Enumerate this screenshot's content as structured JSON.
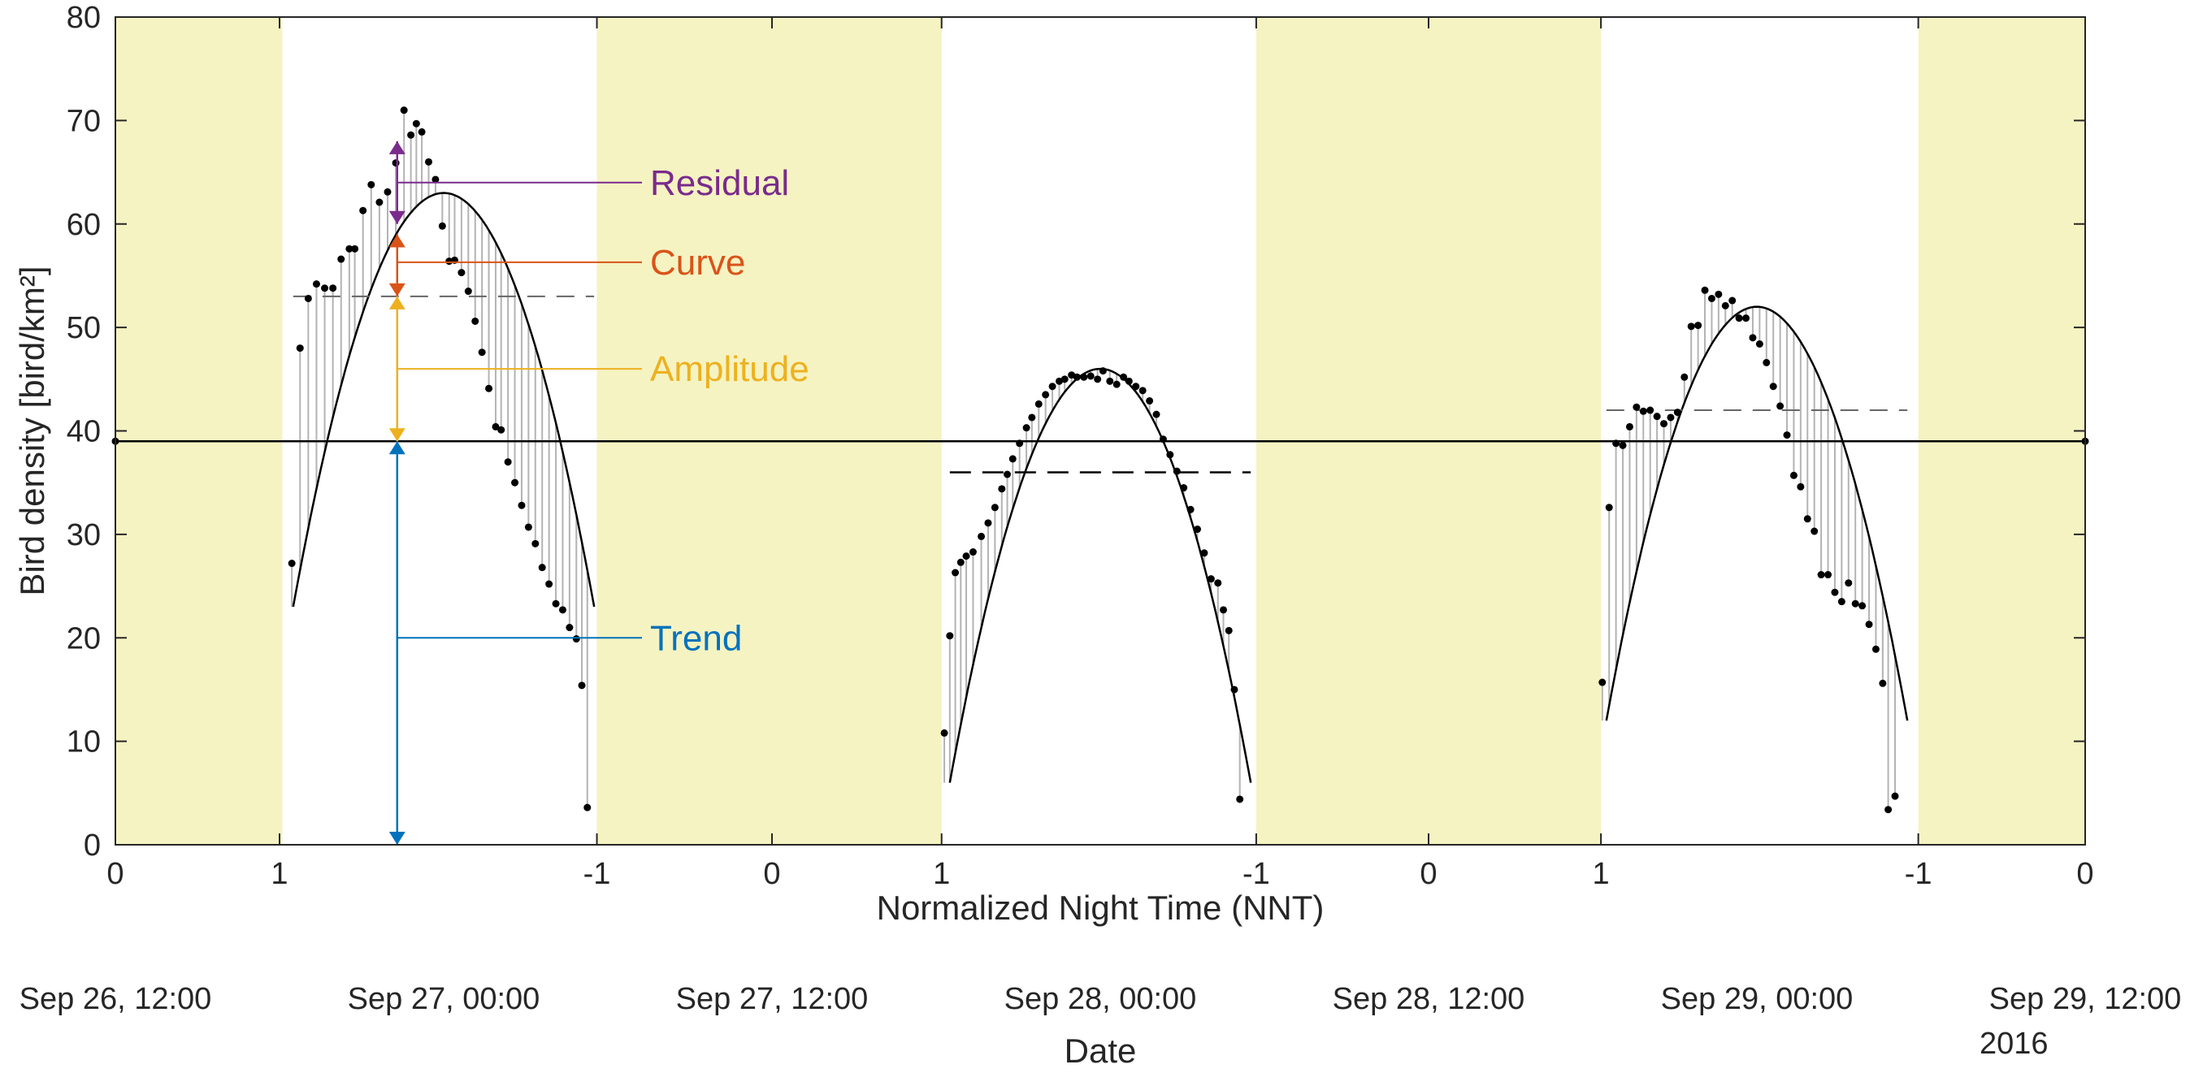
{
  "chart_data": {
    "type": "scatter",
    "xlabel": "Normalized Night Time (NNT)",
    "ylabel": "Bird density [bird/km²]",
    "ylim": [
      0,
      80
    ],
    "yticks": [
      0,
      10,
      20,
      30,
      40,
      50,
      60,
      70,
      80
    ],
    "xlim_hours": [
      0,
      72
    ],
    "date_axis": {
      "title": "Date",
      "ticks": [
        "Sep 26, 12:00",
        "Sep 27, 00:00",
        "Sep 27, 12:00",
        "Sep 28, 00:00",
        "Sep 28, 12:00",
        "Sep 29, 00:00",
        "Sep 29, 12:00"
      ],
      "year": "2016"
    },
    "nnt_ticks": [
      {
        "h": 0,
        "label": "0"
      },
      {
        "h": 6,
        "label": "1"
      },
      {
        "h": 17.6,
        "label": "-1"
      },
      {
        "h": 24,
        "label": "0"
      },
      {
        "h": 30.2,
        "label": "1"
      },
      {
        "h": 41.7,
        "label": "-1"
      },
      {
        "h": 48,
        "label": "0"
      },
      {
        "h": 54.3,
        "label": "1"
      },
      {
        "h": 65.9,
        "label": "-1"
      },
      {
        "h": 72,
        "label": "0"
      }
    ],
    "day_periods": [
      [
        0,
        6.1
      ],
      [
        17.6,
        30.2
      ],
      [
        41.7,
        54.3
      ],
      [
        65.9,
        72
      ]
    ],
    "trend": 39,
    "nights": [
      {
        "start": 6.5,
        "end": 17.5,
        "peak_x": 12.0,
        "peak_y": 63,
        "amplitude_level": 53,
        "fit_ends": [
          23,
          23
        ],
        "points": [
          [
            6.45,
            27.2
          ],
          [
            6.75,
            48
          ],
          [
            7.05,
            52.8
          ],
          [
            7.35,
            54.2
          ],
          [
            7.65,
            53.8
          ],
          [
            7.95,
            53.8
          ],
          [
            8.25,
            56.6
          ],
          [
            8.55,
            57.6
          ],
          [
            8.75,
            57.6
          ],
          [
            9.05,
            61.3
          ],
          [
            9.35,
            63.8
          ],
          [
            9.65,
            62.1
          ],
          [
            9.95,
            63.1
          ],
          [
            10.25,
            65.9
          ],
          [
            10.55,
            71
          ],
          [
            10.8,
            68.6
          ],
          [
            11.0,
            69.7
          ],
          [
            11.2,
            68.9
          ],
          [
            11.45,
            66
          ],
          [
            11.7,
            64.3
          ],
          [
            11.95,
            59.8
          ],
          [
            12.2,
            56.4
          ],
          [
            12.4,
            56.5
          ],
          [
            12.65,
            55.3
          ],
          [
            12.9,
            53.5
          ],
          [
            13.15,
            50.6
          ],
          [
            13.4,
            47.6
          ],
          [
            13.65,
            44.1
          ],
          [
            13.9,
            40.4
          ],
          [
            14.1,
            40.1
          ],
          [
            14.35,
            37
          ],
          [
            14.6,
            35
          ],
          [
            14.85,
            32.8
          ],
          [
            15.1,
            30.7
          ],
          [
            15.35,
            29.1
          ],
          [
            15.6,
            26.8
          ],
          [
            15.85,
            25.2
          ],
          [
            16.1,
            23.3
          ],
          [
            16.35,
            22.7
          ],
          [
            16.6,
            21
          ],
          [
            16.85,
            19.9
          ],
          [
            17.05,
            15.4
          ],
          [
            17.25,
            3.6
          ]
        ]
      },
      {
        "start": 30.5,
        "end": 41.5,
        "peak_x": 36.0,
        "peak_y": 46,
        "amplitude_level": 36,
        "fit_ends": [
          6,
          6
        ],
        "points": [
          [
            30.3,
            10.8
          ],
          [
            30.5,
            20.2
          ],
          [
            30.7,
            26.3
          ],
          [
            30.9,
            27.3
          ],
          [
            31.1,
            27.9
          ],
          [
            31.35,
            28.3
          ],
          [
            31.65,
            29.8
          ],
          [
            31.9,
            31.1
          ],
          [
            32.15,
            32.6
          ],
          [
            32.4,
            34.4
          ],
          [
            32.6,
            35.8
          ],
          [
            32.8,
            37.3
          ],
          [
            33.05,
            38.8
          ],
          [
            33.3,
            40.3
          ],
          [
            33.5,
            41.3
          ],
          [
            33.75,
            42.6
          ],
          [
            34.0,
            43.5
          ],
          [
            34.25,
            44.3
          ],
          [
            34.5,
            44.8
          ],
          [
            34.7,
            45
          ],
          [
            34.95,
            45.4
          ],
          [
            35.15,
            45.2
          ],
          [
            35.4,
            45.2
          ],
          [
            35.65,
            45.3
          ],
          [
            35.9,
            45
          ],
          [
            36.1,
            45.8
          ],
          [
            36.35,
            44.8
          ],
          [
            36.6,
            44.5
          ],
          [
            36.85,
            45.2
          ],
          [
            37.05,
            44.8
          ],
          [
            37.3,
            44.3
          ],
          [
            37.55,
            43.9
          ],
          [
            37.8,
            42.9
          ],
          [
            38.05,
            41.6
          ],
          [
            38.3,
            39.2
          ],
          [
            38.55,
            37.7
          ],
          [
            38.8,
            36.1
          ],
          [
            39.05,
            34.5
          ],
          [
            39.3,
            32.4
          ],
          [
            39.55,
            30.5
          ],
          [
            39.8,
            28.2
          ],
          [
            40.05,
            25.7
          ],
          [
            40.3,
            25.3
          ],
          [
            40.5,
            22.7
          ],
          [
            40.7,
            20.7
          ],
          [
            40.9,
            15
          ],
          [
            41.1,
            4.4
          ]
        ]
      },
      {
        "start": 54.5,
        "end": 65.5,
        "peak_x": 60.0,
        "peak_y": 52,
        "amplitude_level": 42,
        "fit_ends": [
          12,
          12
        ],
        "points": [
          [
            54.35,
            15.7
          ],
          [
            54.6,
            32.6
          ],
          [
            54.85,
            38.8
          ],
          [
            55.1,
            38.6
          ],
          [
            55.35,
            40.4
          ],
          [
            55.6,
            42.3
          ],
          [
            55.85,
            41.9
          ],
          [
            56.1,
            42
          ],
          [
            56.35,
            41.4
          ],
          [
            56.6,
            40.7
          ],
          [
            56.85,
            41.3
          ],
          [
            57.1,
            41.8
          ],
          [
            57.35,
            45.2
          ],
          [
            57.6,
            50.1
          ],
          [
            57.85,
            50.2
          ],
          [
            58.1,
            53.6
          ],
          [
            58.35,
            52.8
          ],
          [
            58.6,
            53.2
          ],
          [
            58.85,
            52.1
          ],
          [
            59.1,
            52.6
          ],
          [
            59.35,
            50.9
          ],
          [
            59.6,
            50.9
          ],
          [
            59.85,
            49
          ],
          [
            60.1,
            48.4
          ],
          [
            60.35,
            46.6
          ],
          [
            60.6,
            44.3
          ],
          [
            60.85,
            42.4
          ],
          [
            61.1,
            39.6
          ],
          [
            61.35,
            35.7
          ],
          [
            61.6,
            34.6
          ],
          [
            61.85,
            31.5
          ],
          [
            62.1,
            30.3
          ],
          [
            62.35,
            26.1
          ],
          [
            62.6,
            26.1
          ],
          [
            62.85,
            24.4
          ],
          [
            63.1,
            23.5
          ],
          [
            63.35,
            25.3
          ],
          [
            63.6,
            23.3
          ],
          [
            63.85,
            23.1
          ],
          [
            64.1,
            21.3
          ],
          [
            64.35,
            18.9
          ],
          [
            64.6,
            15.6
          ],
          [
            64.8,
            3.4
          ],
          [
            65.05,
            4.7
          ]
        ]
      }
    ],
    "edge_points": [
      [
        0,
        39
      ],
      [
        72,
        39
      ]
    ],
    "annotations": [
      {
        "label": "Residual",
        "color": "#7a2b8c",
        "y_from": 60,
        "y_to": 68,
        "line_y": 64
      },
      {
        "label": "Curve",
        "color": "#d95419",
        "y_from": 53,
        "y_to": 59,
        "line_y": 56.3
      },
      {
        "label": "Amplitude",
        "color": "#edb120",
        "y_from": 39,
        "y_to": 53,
        "line_y": 46
      },
      {
        "label": "Trend",
        "color": "#0072bd",
        "y_from": 0,
        "y_to": 39,
        "line_y": 20
      }
    ],
    "annotation_x_hours": 10.3,
    "colors": {
      "day_shade": "#f5f3c2",
      "points": "#000000",
      "residual_lines": "#b3b3b3",
      "axis": "#262626"
    }
  }
}
